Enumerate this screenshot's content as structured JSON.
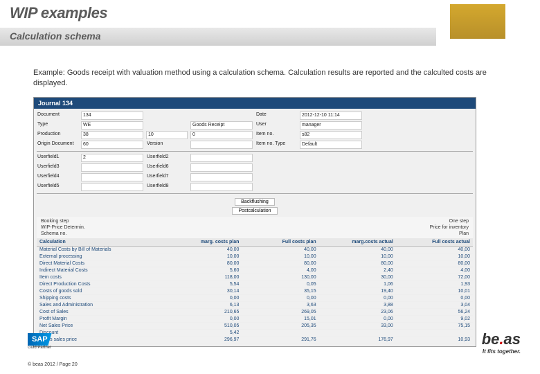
{
  "header": {
    "title_main": "WIP examples",
    "title_sub": "Calculation schema"
  },
  "description": "Example: Goods receipt with valuation method using a calculation schema. Calculation results are reported and the calculted costs are displayed.",
  "journal": {
    "title": "Journal 134",
    "fields": {
      "document_lbl": "Document",
      "document_val": "134",
      "date_lbl": "Date",
      "date_val": "2012-12-10 11:14",
      "type_lbl": "Type",
      "type_val": "WE",
      "type2_val": "Goods Receipt",
      "user_lbl": "User",
      "user_val": "manager",
      "production_lbl": "Production",
      "production_val": "38",
      "prod2_val": "10",
      "prod3_val": "0",
      "itemno_lbl": "Item no.",
      "itemno_val": "s82",
      "orig_lbl": "Origin Document",
      "orig_val": "60",
      "vers_lbl": "Version",
      "vers_val": "",
      "itemtype_lbl": "Item no. Type",
      "itemtype_val": "Default",
      "uf1_lbl": "Userfield1",
      "uf1_val": "2",
      "uf2_lbl": "Userfield2",
      "uf3_lbl": "Userfield3",
      "uf4_lbl": "Userfield4",
      "uf5_lbl": "Userfield5",
      "uf6_lbl": "Userfield6",
      "uf7_lbl": "Userfield7",
      "uf8_lbl": "Userfield8"
    },
    "buttons": {
      "backflushing": "Backflushing",
      "postcalc": "Postcalculation"
    },
    "calc_section": {
      "booking_lbl": "Booking step",
      "booking_val": "One step",
      "price_lbl": "WIP-Price Determin.",
      "price_val": "Price for inventory",
      "scheme_lbl": "Schema no.",
      "scheme_val": "Plan"
    },
    "table": {
      "headers": [
        "Calculation",
        "marg. costs plan",
        "Full costs plan",
        "marg.costs actual",
        "Full costs actual"
      ],
      "rows": [
        [
          "Material Costs by Bill of Materials",
          "40,00",
          "40,00",
          "40,00",
          "40,00"
        ],
        [
          "External processing",
          "10,00",
          "10,00",
          "10,00",
          "10,00"
        ],
        [
          "Direct Material Costs",
          "80,00",
          "80,00",
          "80,00",
          "80,00"
        ],
        [
          "Indirect Material Costs",
          "5,60",
          "4,00",
          "2,40",
          "4,00"
        ],
        [
          "Item costs",
          "118,00",
          "130,00",
          "30,00",
          "72,00"
        ],
        [
          "Direct Production Costs",
          "5,54",
          "0,05",
          "1,06",
          "1,93"
        ],
        [
          "Costs of goods sold",
          "30,14",
          "35,15",
          "19,40",
          "10,01"
        ],
        [
          "Shipping costs",
          "0,00",
          "0,00",
          "0,00",
          "0,00"
        ],
        [
          "Sales and Administration",
          "6,13",
          "3,63",
          "3,88",
          "3,04"
        ],
        [
          "Cost of Sales",
          "210,65",
          "269,05",
          "23,06",
          "56,24"
        ],
        [
          "Profit Margin",
          "0,00",
          "15,01",
          "0,00",
          "9,02"
        ],
        [
          "Net Sales Price",
          "510,05",
          "205,35",
          "33,00",
          "75,15"
        ],
        [
          "Discount",
          "5,42",
          "",
          "",
          ""
        ],
        [
          "Gross sales price",
          "296,97",
          "291,76",
          "176,97",
          "10,93"
        ]
      ]
    }
  },
  "footer": {
    "copyright": "© beas 2012 / Page 20",
    "sap": "SAP",
    "sap_gold": "Gold Partner",
    "beas_be": "be",
    "beas_dot": ".",
    "beas_as": "as",
    "beas_tag": "It fits together."
  },
  "colors": {
    "accent": "#d4a82e",
    "journal_header": "#1e4a7a",
    "link_blue": "#1e4a7a"
  }
}
